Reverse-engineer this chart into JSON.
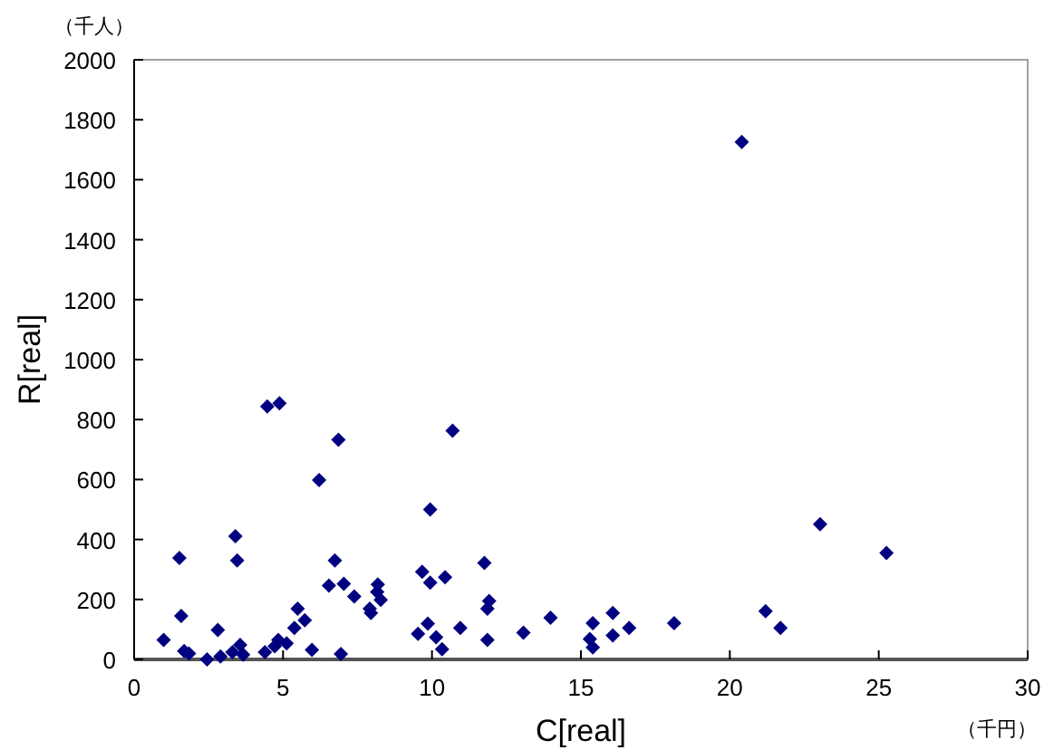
{
  "chart_data": {
    "type": "scatter",
    "xlabel": "C[real]",
    "ylabel": "R[real]",
    "annotations": [
      "（千人）",
      "（千円）"
    ],
    "xlim": [
      0,
      30
    ],
    "xticks": [
      0,
      5,
      10,
      15,
      20,
      25,
      30
    ],
    "ylim": [
      0,
      2000
    ],
    "yticks": [
      0,
      200,
      400,
      600,
      800,
      1000,
      1200,
      1400,
      1600,
      1800,
      2000
    ],
    "grid": false,
    "marker": "diamond",
    "series": [
      {
        "color": "#000080",
        "x": [
          0.99,
          1.52,
          1.58,
          1.68,
          1.84,
          2.45,
          2.81,
          2.9,
          3.4,
          3.46,
          3.56,
          3.3,
          3.66,
          4.39,
          4.72,
          4.84,
          5.12,
          5.38,
          5.49,
          5.73,
          5.97,
          6.21,
          6.54,
          6.74,
          6.94,
          7.04,
          7.39,
          7.91,
          7.95,
          8.18,
          8.16,
          8.28,
          9.53,
          9.67,
          9.86,
          9.94,
          9.94,
          10.14,
          10.34,
          10.44,
          11.76,
          11.92,
          11.86,
          11.86,
          10.95,
          13.07,
          13.98,
          15.4,
          15.3,
          15.4,
          16.07,
          16.07,
          16.62,
          18.13,
          21.2,
          21.7,
          23.03,
          25.26,
          4.47,
          4.88,
          6.86,
          10.69,
          20.4
        ],
        "values": [
          65,
          338,
          145,
          28,
          20,
          0,
          98,
          10,
          411,
          330,
          48,
          24,
          16,
          24,
          44,
          65,
          54,
          105,
          169,
          131,
          32,
          598,
          246,
          330,
          18,
          252,
          210,
          169,
          155,
          250,
          225,
          199,
          85,
          292,
          119,
          500,
          256,
          74,
          34,
          274,
          322,
          195,
          169,
          65,
          105,
          89,
          139,
          121,
          68,
          40,
          155,
          80,
          105,
          121,
          161,
          105,
          451,
          355,
          844,
          854,
          733,
          763,
          1726
        ]
      }
    ]
  }
}
